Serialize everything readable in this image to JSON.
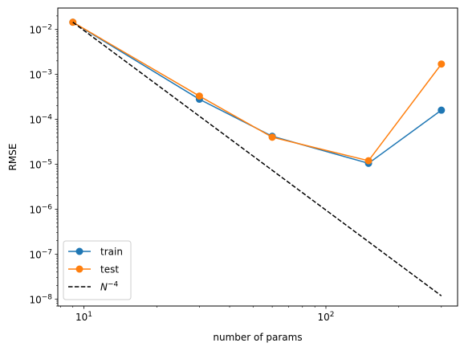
{
  "chart_data": {
    "type": "line",
    "xlabel": "number of params",
    "ylabel": "RMSE",
    "xscale": "log",
    "yscale": "log",
    "xlim": [
      7.8,
      350
    ],
    "ylim": [
      7e-09,
      0.03
    ],
    "x_ticks": [
      {
        "value": 10,
        "base": "10",
        "exp": "1"
      },
      {
        "value": 100,
        "base": "10",
        "exp": "2"
      }
    ],
    "y_ticks": [
      {
        "value": 1e-08,
        "base": "10",
        "exp": "−8"
      },
      {
        "value": 1e-07,
        "base": "10",
        "exp": "−7"
      },
      {
        "value": 1e-06,
        "base": "10",
        "exp": "−6"
      },
      {
        "value": 1e-05,
        "base": "10",
        "exp": "−5"
      },
      {
        "value": 0.0001,
        "base": "10",
        "exp": "−4"
      },
      {
        "value": 0.001,
        "base": "10",
        "exp": "−3"
      },
      {
        "value": 0.01,
        "base": "10",
        "exp": "−2"
      }
    ],
    "grid": false,
    "legend_position": "lower-left",
    "series": [
      {
        "name": "train",
        "color": "#1f77b4",
        "style": "line-marker",
        "x": [
          9,
          30,
          60,
          150,
          300
        ],
        "y": [
          0.0145,
          0.00028,
          4.2e-05,
          1.05e-05,
          0.00016
        ]
      },
      {
        "name": "test",
        "color": "#ff7f0e",
        "style": "line-marker",
        "x": [
          9,
          30,
          60,
          150,
          300
        ],
        "y": [
          0.0145,
          0.00033,
          4e-05,
          1.2e-05,
          0.0017
        ]
      },
      {
        "name": "N",
        "name_exp": "−4",
        "color": "#000000",
        "style": "dashed",
        "x": [
          9,
          300
        ],
        "y": [
          0.0145,
          1.18e-08
        ]
      }
    ]
  }
}
